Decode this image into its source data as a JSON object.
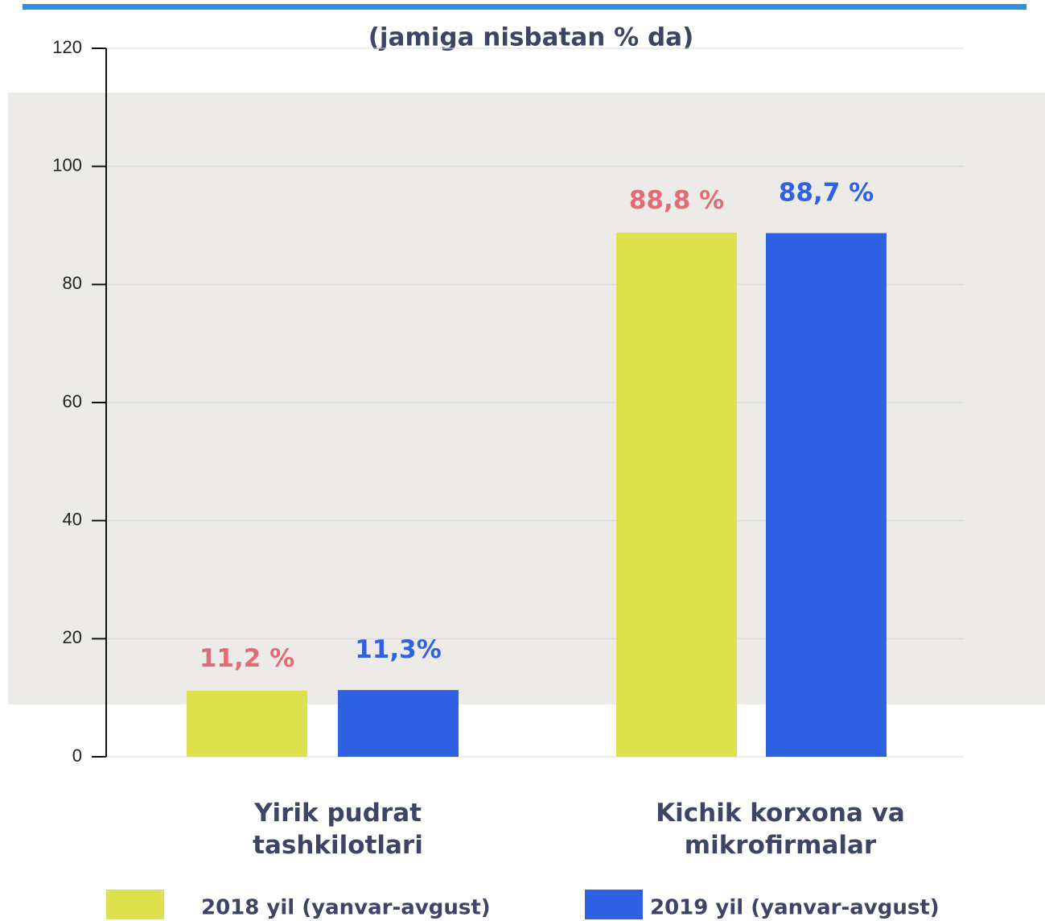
{
  "chart_data": {
    "type": "bar",
    "subtitle": "(jamiga nisbatan % da)",
    "categories": [
      "Yirik pudrat tashkilotlari",
      "Kichik korxona va mikrofirmalar"
    ],
    "series": [
      {
        "name": "2018 yil (yanvar-avgust)",
        "color": "#dde14b",
        "label_color": "#e06c75",
        "values": [
          11.2,
          88.8
        ],
        "value_labels": [
          "11,2 %",
          "88,8 %"
        ]
      },
      {
        "name": "2019 yil (yanvar-avgust)",
        "color": "#2f62e3",
        "label_color": "#2f62e3",
        "values": [
          11.3,
          88.7
        ],
        "value_labels": [
          "11,3%",
          "88,7 %"
        ]
      }
    ],
    "ylim": [
      0,
      120
    ],
    "yticks": [
      0,
      20,
      40,
      60,
      80,
      100,
      120
    ],
    "grid": true
  }
}
